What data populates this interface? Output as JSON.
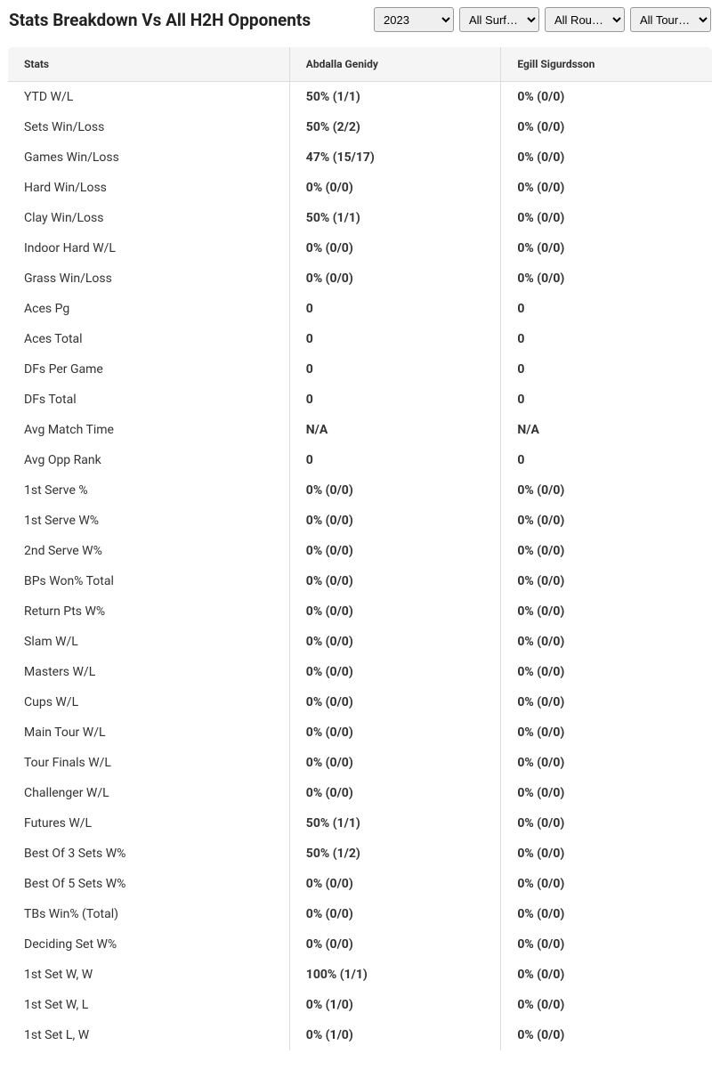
{
  "header": {
    "title": "Stats Breakdown Vs All H2H Opponents"
  },
  "filters": {
    "year": {
      "selected": "2023",
      "options": [
        "2023"
      ]
    },
    "surface": {
      "selected": "All Surf…",
      "options": [
        "All Surf…"
      ]
    },
    "round": {
      "selected": "All Rou…",
      "options": [
        "All Rou…"
      ]
    },
    "tour": {
      "selected": "All Tour…",
      "options": [
        "All Tour…"
      ]
    }
  },
  "table": {
    "columns": [
      "Stats",
      "Abdalla Genidy",
      "Egill Sigurdsson"
    ],
    "rows": [
      [
        "YTD W/L",
        "50% (1/1)",
        "0% (0/0)"
      ],
      [
        "Sets Win/Loss",
        "50% (2/2)",
        "0% (0/0)"
      ],
      [
        "Games Win/Loss",
        "47% (15/17)",
        "0% (0/0)"
      ],
      [
        "Hard Win/Loss",
        "0% (0/0)",
        "0% (0/0)"
      ],
      [
        "Clay Win/Loss",
        "50% (1/1)",
        "0% (0/0)"
      ],
      [
        "Indoor Hard W/L",
        "0% (0/0)",
        "0% (0/0)"
      ],
      [
        "Grass Win/Loss",
        "0% (0/0)",
        "0% (0/0)"
      ],
      [
        "Aces Pg",
        "0",
        "0"
      ],
      [
        "Aces Total",
        "0",
        "0"
      ],
      [
        "DFs Per Game",
        "0",
        "0"
      ],
      [
        "DFs Total",
        "0",
        "0"
      ],
      [
        "Avg Match Time",
        "N/A",
        "N/A"
      ],
      [
        "Avg Opp Rank",
        "0",
        "0"
      ],
      [
        "1st Serve %",
        "0% (0/0)",
        "0% (0/0)"
      ],
      [
        "1st Serve W%",
        "0% (0/0)",
        "0% (0/0)"
      ],
      [
        "2nd Serve W%",
        "0% (0/0)",
        "0% (0/0)"
      ],
      [
        "BPs Won% Total",
        "0% (0/0)",
        "0% (0/0)"
      ],
      [
        "Return Pts W%",
        "0% (0/0)",
        "0% (0/0)"
      ],
      [
        "Slam W/L",
        "0% (0/0)",
        "0% (0/0)"
      ],
      [
        "Masters W/L",
        "0% (0/0)",
        "0% (0/0)"
      ],
      [
        "Cups W/L",
        "0% (0/0)",
        "0% (0/0)"
      ],
      [
        "Main Tour W/L",
        "0% (0/0)",
        "0% (0/0)"
      ],
      [
        "Tour Finals W/L",
        "0% (0/0)",
        "0% (0/0)"
      ],
      [
        "Challenger W/L",
        "0% (0/0)",
        "0% (0/0)"
      ],
      [
        "Futures W/L",
        "50% (1/1)",
        "0% (0/0)"
      ],
      [
        "Best Of 3 Sets W%",
        "50% (1/2)",
        "0% (0/0)"
      ],
      [
        "Best Of 5 Sets W%",
        "0% (0/0)",
        "0% (0/0)"
      ],
      [
        "TBs Win% (Total)",
        "0% (0/0)",
        "0% (0/0)"
      ],
      [
        "Deciding Set W%",
        "0% (0/0)",
        "0% (0/0)"
      ],
      [
        "1st Set W, W",
        "100% (1/1)",
        "0% (0/0)"
      ],
      [
        "1st Set W, L",
        "0% (1/0)",
        "0% (0/0)"
      ],
      [
        "1st Set L, W",
        "0% (1/0)",
        "0% (0/0)"
      ]
    ]
  },
  "styling": {
    "background_color": "#ffffff",
    "header_title_color": "#222222",
    "header_title_fontsize": 19,
    "header_title_weight": 700,
    "filter_bg": "#efefef",
    "filter_border": "#999999",
    "table_border": "#cccccc",
    "table_header_bg": "#f5f5f5",
    "table_divider": "#dddddd",
    "th_fontsize": 12,
    "td_fontsize": 14,
    "stat_label_weight": 400,
    "stat_value_weight": 700,
    "col_widths_pct": [
      40,
      30,
      30
    ],
    "row_padding_v": 9,
    "row_padding_h": 18
  }
}
